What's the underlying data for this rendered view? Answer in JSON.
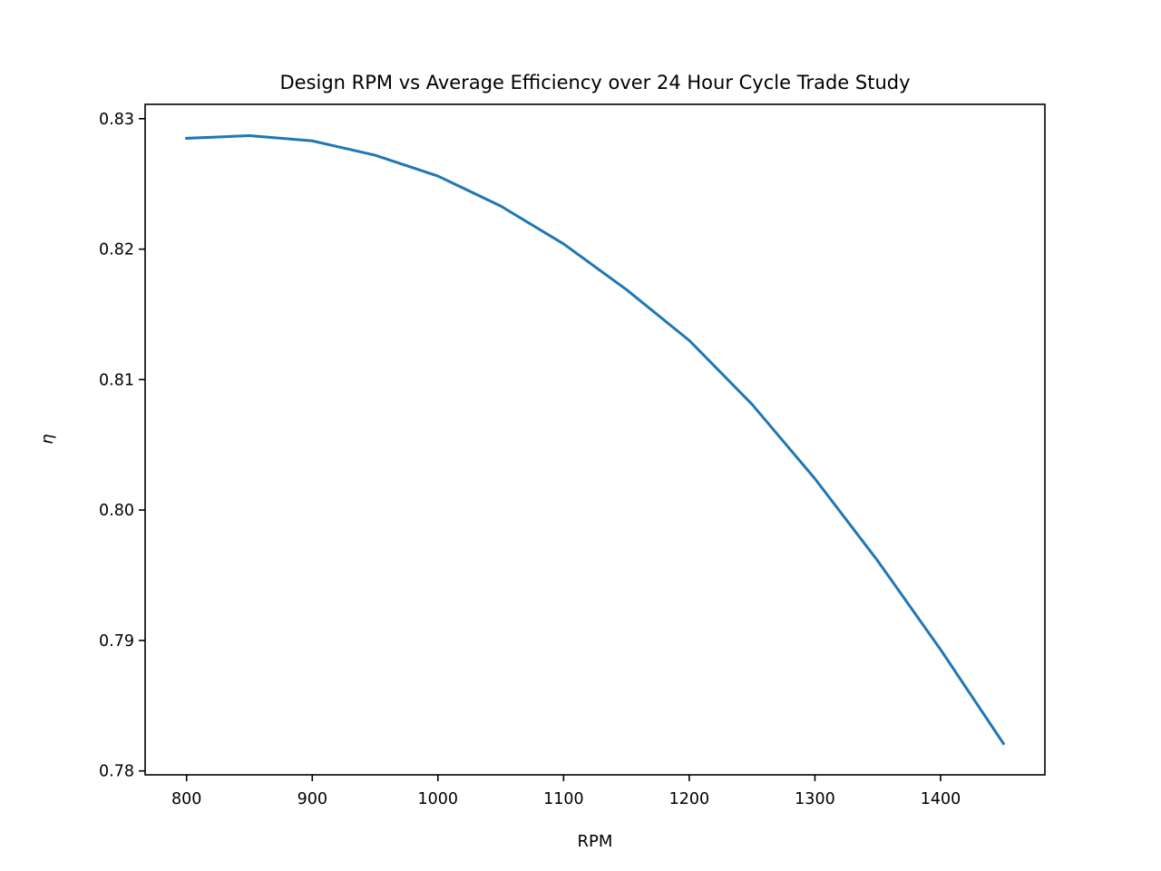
{
  "chart_data": {
    "type": "line",
    "title": "Design RPM vs Average Efficiency over 24 Hour Cycle Trade Study",
    "xlabel": "RPM",
    "ylabel": "η",
    "xlim": [
      767,
      1483
    ],
    "ylim": [
      0.7797,
      0.8311
    ],
    "xticks": [
      800,
      900,
      1000,
      1100,
      1200,
      1300,
      1400
    ],
    "yticks": [
      0.78,
      0.79,
      0.8,
      0.81,
      0.82,
      0.83
    ],
    "ytick_labels": [
      "0.78",
      "0.79",
      "0.80",
      "0.81",
      "0.82",
      "0.83"
    ],
    "grid": false,
    "series": [
      {
        "color": "#1f77b4",
        "x": [
          800,
          850,
          900,
          950,
          1000,
          1050,
          1100,
          1150,
          1200,
          1250,
          1300,
          1350,
          1400,
          1450
        ],
        "y": [
          0.8285,
          0.8287,
          0.8283,
          0.8272,
          0.8256,
          0.8233,
          0.8204,
          0.8169,
          0.813,
          0.8081,
          0.8024,
          0.7961,
          0.7893,
          0.7821
        ]
      }
    ]
  }
}
